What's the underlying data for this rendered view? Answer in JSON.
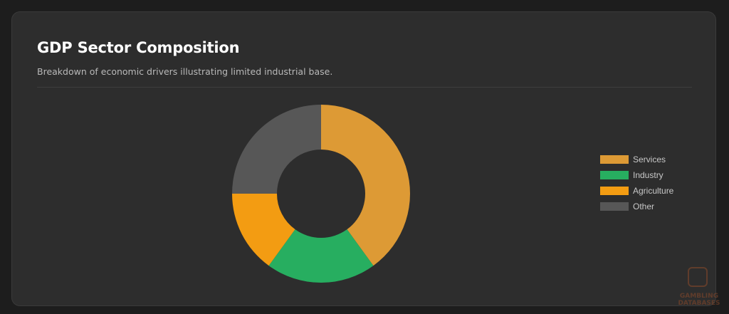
{
  "card": {
    "title": "GDP Sector Composition",
    "subtitle": "Breakdown of economic drivers illustrating limited industrial base."
  },
  "chart_data": {
    "type": "pie",
    "variant": "doughnut",
    "title": "",
    "categories": [
      "Services",
      "Industry",
      "Agriculture",
      "Other"
    ],
    "values": [
      40,
      20,
      15,
      25
    ],
    "colors": [
      "#dd9a35",
      "#27ae60",
      "#f39c12",
      "#575757"
    ],
    "legend_position": "right"
  },
  "watermark": {
    "line1": "GAMBLING",
    "line2": "DATABASES"
  }
}
